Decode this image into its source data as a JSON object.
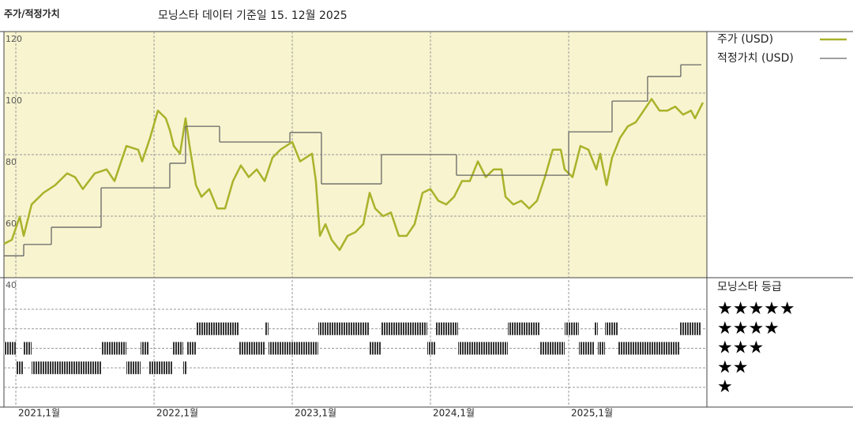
{
  "chart_data": {
    "type": "line",
    "title": "주가/적정가치",
    "subtitle": "모닝스타 데이터 기준일 15. 12월 2025",
    "xlim": [
      2020.914,
      2026.0
    ],
    "ylim": [
      40,
      120
    ],
    "yticks": [
      40,
      60,
      80,
      100,
      120
    ],
    "xticks": [
      {
        "value": 2021,
        "label": "2021,1월"
      },
      {
        "value": 2022,
        "label": "2022,1월"
      },
      {
        "value": 2023,
        "label": "2023,1월"
      },
      {
        "value": 2024,
        "label": "2024,1월"
      },
      {
        "value": 2025,
        "label": "2025,1월"
      }
    ],
    "grid": true,
    "series": [
      {
        "name": "주가 (USD)",
        "color": "#a9b22a",
        "x": [
          2020.914,
          2020.971,
          2021.028,
          2021.057,
          2021.114,
          2021.2,
          2021.285,
          2021.371,
          2021.428,
          2021.485,
          2021.571,
          2021.657,
          2021.714,
          2021.8,
          2021.885,
          2021.914,
          2021.971,
          2022.028,
          2022.085,
          2022.114,
          2022.143,
          2022.188,
          2022.228,
          2022.257,
          2022.303,
          2022.343,
          2022.4,
          2022.457,
          2022.514,
          2022.571,
          2022.628,
          2022.685,
          2022.743,
          2022.8,
          2022.857,
          2022.914,
          2023.0,
          2023.057,
          2023.143,
          2023.171,
          2023.2,
          2023.24,
          2023.285,
          2023.343,
          2023.4,
          2023.457,
          2023.514,
          2023.56,
          2023.6,
          2023.657,
          2023.714,
          2023.771,
          2023.828,
          2023.885,
          2023.943,
          2024.0,
          2024.057,
          2024.114,
          2024.171,
          2024.228,
          2024.285,
          2024.343,
          2024.4,
          2024.457,
          2024.514,
          2024.543,
          2024.6,
          2024.657,
          2024.714,
          2024.771,
          2024.828,
          2024.885,
          2024.943,
          2024.971,
          2025.028,
          2025.085,
          2025.143,
          2025.2,
          2025.228,
          2025.274,
          2025.314,
          2025.371,
          2025.428,
          2025.485,
          2025.543,
          2025.6,
          2025.657,
          2025.714,
          2025.771,
          2025.828,
          2025.885,
          2025.914,
          2025.971
        ],
        "values": [
          51.0,
          52.3,
          59.8,
          53.6,
          63.8,
          67.6,
          70.1,
          73.9,
          72.7,
          68.8,
          73.9,
          75.2,
          71.4,
          82.8,
          81.6,
          77.8,
          85.4,
          94.3,
          91.8,
          88.0,
          82.8,
          80.3,
          91.8,
          82.8,
          70.1,
          66.3,
          68.8,
          62.5,
          62.5,
          71.4,
          76.5,
          72.7,
          75.2,
          71.4,
          79.0,
          81.6,
          84.1,
          77.8,
          80.3,
          71.4,
          53.6,
          57.4,
          52.3,
          49.0,
          53.6,
          54.8,
          57.4,
          67.6,
          62.5,
          60.0,
          61.2,
          53.6,
          53.6,
          57.4,
          67.6,
          68.8,
          65.0,
          63.8,
          66.3,
          71.4,
          71.4,
          77.8,
          72.7,
          75.2,
          75.2,
          66.3,
          63.8,
          65.0,
          62.5,
          65.0,
          72.7,
          81.6,
          81.6,
          75.2,
          72.7,
          82.8,
          81.6,
          75.2,
          80.3,
          70.1,
          79.0,
          85.4,
          89.2,
          90.5,
          94.3,
          98.1,
          94.3,
          94.3,
          95.6,
          93.0,
          94.3,
          91.8,
          96.9
        ]
      },
      {
        "name": "적정가치 (USD)",
        "color": "#666666",
        "step": true,
        "x": [
          2020.914,
          2021.057,
          2021.257,
          2021.617,
          2022.114,
          2022.228,
          2022.474,
          2022.983,
          2023.211,
          2023.645,
          2024.188,
          2025.0,
          2025.314,
          2025.571,
          2025.811,
          2025.96
        ],
        "values": [
          47.1,
          50.8,
          56.4,
          69.2,
          77.2,
          89.2,
          84.1,
          87.2,
          70.5,
          80.0,
          73.3,
          87.4,
          97.4,
          105.4,
          109.2,
          109.2
        ]
      }
    ],
    "ratings": {
      "title": "모닝스타 등급",
      "levels": [
        5,
        4,
        3,
        2,
        1
      ],
      "labels": [
        "★★★★★",
        "★★★★",
        "★★★",
        "★★",
        "★"
      ],
      "bounds": [
        2020.914,
        2021.0,
        2021.057,
        2021.114,
        2021.617,
        2021.8,
        2021.903,
        2021.96,
        2022.131,
        2022.211,
        2022.234,
        2022.303,
        2022.617,
        2022.8,
        2022.828,
        2023.188,
        2023.554,
        2023.64,
        2023.977,
        2024.04,
        2024.2,
        2024.56,
        2024.788,
        2024.971,
        2025.074,
        2025.188,
        2025.211,
        2025.263,
        2025.36,
        2025.8,
        2025.96
      ],
      "stars": [
        3,
        2,
        3,
        2,
        3,
        2,
        3,
        2,
        3,
        2,
        3,
        4,
        3,
        4,
        3,
        4,
        3,
        4,
        3,
        4,
        3,
        4,
        3,
        4,
        3,
        4,
        3,
        4,
        3,
        4
      ]
    }
  }
}
